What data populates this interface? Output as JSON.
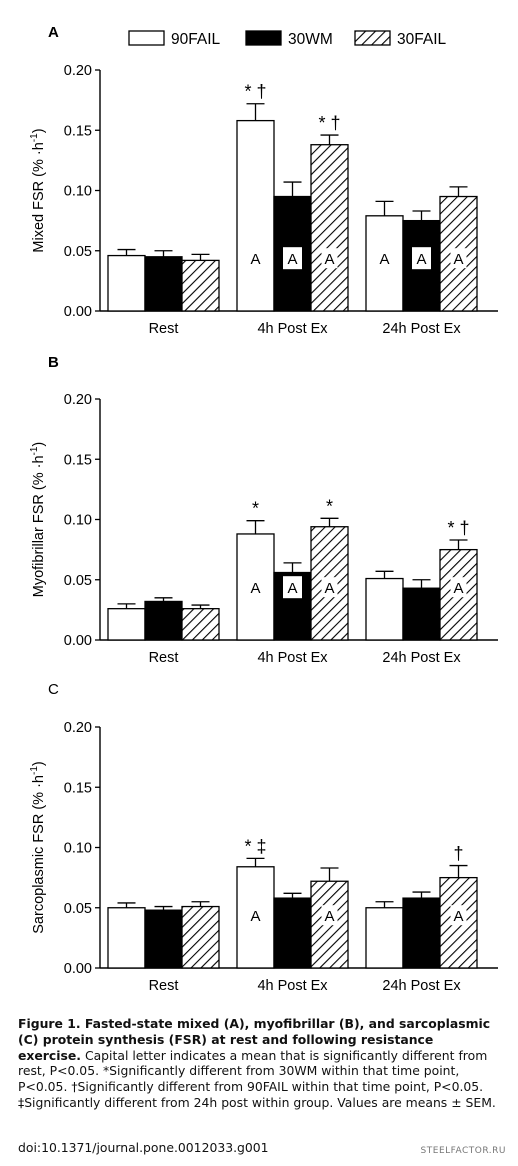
{
  "legend": [
    {
      "name": "90FAIL",
      "fill": "white"
    },
    {
      "name": "30WM",
      "fill": "black"
    },
    {
      "name": "30FAIL",
      "fill": "hatch"
    }
  ],
  "colors": {
    "bar_black": "#000000",
    "bar_white": "#ffffff",
    "axis": "#000000"
  },
  "chart_data": [
    {
      "type": "bar",
      "panel_label": "A",
      "ylabel_main": "Mixed FSR (% ·h",
      "ylabel_sup": "-1",
      "ylabel_end": ")",
      "categories": [
        "Rest",
        "4h Post Ex",
        "24h Post Ex"
      ],
      "ylim": [
        0,
        0.2
      ],
      "yticks": [
        "0.00",
        "0.05",
        "0.10",
        "0.15",
        "0.20"
      ],
      "series": [
        {
          "name": "90FAIL",
          "values": [
            0.046,
            0.158,
            0.079
          ],
          "errors": [
            0.005,
            0.014,
            0.012
          ]
        },
        {
          "name": "30WM",
          "values": [
            0.045,
            0.095,
            0.075
          ],
          "errors": [
            0.005,
            0.012,
            0.008
          ]
        },
        {
          "name": "30FAIL",
          "values": [
            0.042,
            0.138,
            0.095
          ],
          "errors": [
            0.005,
            0.008,
            0.008
          ]
        }
      ],
      "annotations": [
        {
          "series": 0,
          "category": 1,
          "text": "* †"
        },
        {
          "series": 2,
          "category": 1,
          "text": "* †"
        }
      ],
      "letters": [
        {
          "series": 0,
          "category": 1,
          "text": "A"
        },
        {
          "series": 1,
          "category": 1,
          "text": "A"
        },
        {
          "series": 2,
          "category": 1,
          "text": "A"
        },
        {
          "series": 0,
          "category": 2,
          "text": "A"
        },
        {
          "series": 1,
          "category": 2,
          "text": "A"
        },
        {
          "series": 2,
          "category": 2,
          "text": "A"
        }
      ]
    },
    {
      "type": "bar",
      "panel_label": "B",
      "ylabel_main": "Myofibrillar FSR (% ·h",
      "ylabel_sup": "-1",
      "ylabel_end": ")",
      "categories": [
        "Rest",
        "4h Post Ex",
        "24h Post Ex"
      ],
      "ylim": [
        0,
        0.2
      ],
      "yticks": [
        "0.00",
        "0.05",
        "0.10",
        "0.15",
        "0.20"
      ],
      "series": [
        {
          "name": "90FAIL",
          "values": [
            0.026,
            0.088,
            0.051
          ],
          "errors": [
            0.004,
            0.011,
            0.006
          ]
        },
        {
          "name": "30WM",
          "values": [
            0.032,
            0.056,
            0.043
          ],
          "errors": [
            0.003,
            0.008,
            0.007
          ]
        },
        {
          "name": "30FAIL",
          "values": [
            0.026,
            0.094,
            0.075
          ],
          "errors": [
            0.003,
            0.007,
            0.008
          ]
        }
      ],
      "annotations": [
        {
          "series": 0,
          "category": 1,
          "text": "*"
        },
        {
          "series": 2,
          "category": 1,
          "text": "*"
        },
        {
          "series": 2,
          "category": 2,
          "text": "* †"
        }
      ],
      "letters": [
        {
          "series": 0,
          "category": 1,
          "text": "A"
        },
        {
          "series": 1,
          "category": 1,
          "text": "A"
        },
        {
          "series": 2,
          "category": 1,
          "text": "A"
        },
        {
          "series": 2,
          "category": 2,
          "text": "A"
        }
      ]
    },
    {
      "type": "bar",
      "panel_label": "C",
      "ylabel_main": "Sarcoplasmic FSR (% ·h",
      "ylabel_sup": "-1",
      "ylabel_end": ")",
      "categories": [
        "Rest",
        "4h Post Ex",
        "24h Post Ex"
      ],
      "ylim": [
        0,
        0.2
      ],
      "yticks": [
        "0.00",
        "0.05",
        "0.10",
        "0.15",
        "0.20"
      ],
      "series": [
        {
          "name": "90FAIL",
          "values": [
            0.05,
            0.084,
            0.05
          ],
          "errors": [
            0.004,
            0.007,
            0.005
          ]
        },
        {
          "name": "30WM",
          "values": [
            0.048,
            0.058,
            0.058
          ],
          "errors": [
            0.003,
            0.004,
            0.005
          ]
        },
        {
          "name": "30FAIL",
          "values": [
            0.051,
            0.072,
            0.075
          ],
          "errors": [
            0.004,
            0.011,
            0.01
          ]
        }
      ],
      "annotations": [
        {
          "series": 0,
          "category": 1,
          "text": "* ‡"
        },
        {
          "series": 2,
          "category": 2,
          "text": "†"
        }
      ],
      "letters": [
        {
          "series": 0,
          "category": 1,
          "text": "A"
        },
        {
          "series": 2,
          "category": 1,
          "text": "A"
        },
        {
          "series": 2,
          "category": 2,
          "text": "A"
        }
      ]
    }
  ],
  "caption": {
    "bold": "Figure 1. Fasted-state mixed (A), myofibrillar (B), and sarcoplasmic (C) protein synthesis (FSR) at rest and following resistance exercise.",
    "text": " Capital letter indicates a mean that is significantly different from rest, P<0.05. *Significantly different from 30WM within that time point, P<0.05. †Significantly different from 90FAIL within that time point, P<0.05. ‡Significantly different from 24h post within group. Values are means ± SEM.",
    "doi": "doi:10.1371/journal.pone.0012033.g001"
  },
  "watermark": "STEELFACTOR.RU"
}
